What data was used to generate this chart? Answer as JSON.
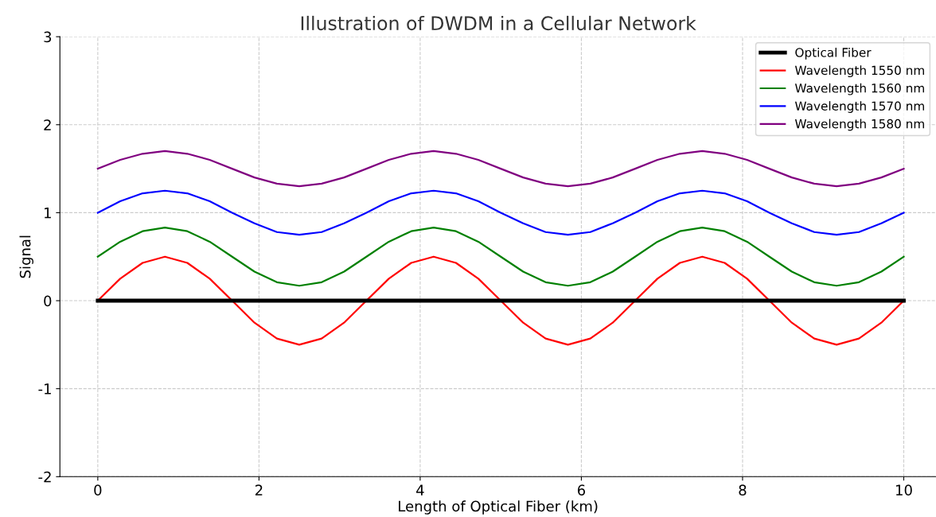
{
  "chart_data": {
    "type": "line",
    "title": "Illustration of DWDM in a Cellular Network",
    "xlabel": "Length of Optical Fiber (km)",
    "ylabel": "Signal",
    "x": [
      0,
      0.278,
      0.556,
      0.833,
      1.111,
      1.389,
      1.667,
      1.944,
      2.222,
      2.5,
      2.778,
      3.056,
      3.333,
      3.611,
      3.889,
      4.167,
      4.444,
      4.722,
      5,
      5.278,
      5.556,
      5.833,
      6.111,
      6.389,
      6.667,
      6.944,
      7.222,
      7.5,
      7.778,
      8.056,
      8.333,
      8.611,
      8.889,
      9.167,
      9.444,
      9.722,
      10
    ],
    "series": [
      {
        "name": "Optical Fiber",
        "color": "#000000",
        "x": [
          0,
          10
        ],
        "values": [
          0,
          0
        ]
      },
      {
        "name": "Wavelength 1550 nm",
        "color": "#ff0000",
        "values": [
          0,
          0.25,
          0.43,
          0.5,
          0.43,
          0.25,
          0,
          -0.25,
          -0.43,
          -0.5,
          -0.43,
          -0.25,
          0,
          0.25,
          0.43,
          0.5,
          0.43,
          0.25,
          0,
          -0.25,
          -0.43,
          -0.5,
          -0.43,
          -0.25,
          0,
          0.25,
          0.43,
          0.5,
          0.43,
          0.25,
          0,
          -0.25,
          -0.43,
          -0.5,
          -0.43,
          -0.25,
          0
        ]
      },
      {
        "name": "Wavelength 1560 nm",
        "color": "#008000",
        "values": [
          0.5,
          0.67,
          0.79,
          0.83,
          0.79,
          0.67,
          0.5,
          0.33,
          0.21,
          0.17,
          0.21,
          0.33,
          0.5,
          0.67,
          0.79,
          0.83,
          0.79,
          0.67,
          0.5,
          0.33,
          0.21,
          0.17,
          0.21,
          0.33,
          0.5,
          0.67,
          0.79,
          0.83,
          0.79,
          0.67,
          0.5,
          0.33,
          0.21,
          0.17,
          0.21,
          0.33,
          0.5
        ]
      },
      {
        "name": "Wavelength 1570 nm",
        "color": "#0000ff",
        "values": [
          1,
          1.13,
          1.22,
          1.25,
          1.22,
          1.13,
          1,
          0.88,
          0.78,
          0.75,
          0.78,
          0.88,
          1,
          1.13,
          1.22,
          1.25,
          1.22,
          1.13,
          1,
          0.88,
          0.78,
          0.75,
          0.78,
          0.88,
          1,
          1.13,
          1.22,
          1.25,
          1.22,
          1.13,
          1,
          0.88,
          0.78,
          0.75,
          0.78,
          0.88,
          1
        ]
      },
      {
        "name": "Wavelength 1580 nm",
        "color": "#800080",
        "values": [
          1.5,
          1.6,
          1.67,
          1.7,
          1.67,
          1.6,
          1.5,
          1.4,
          1.33,
          1.3,
          1.33,
          1.4,
          1.5,
          1.6,
          1.67,
          1.7,
          1.67,
          1.6,
          1.5,
          1.4,
          1.33,
          1.3,
          1.33,
          1.4,
          1.5,
          1.6,
          1.67,
          1.7,
          1.67,
          1.6,
          1.5,
          1.4,
          1.33,
          1.3,
          1.33,
          1.4,
          1.5
        ]
      }
    ],
    "xlim": [
      -0.47,
      10.4
    ],
    "xticks": [
      0,
      2,
      4,
      6,
      8,
      10
    ],
    "ylim": [
      -2,
      3
    ],
    "yticks": [
      -2,
      -1,
      0,
      1,
      2,
      3
    ],
    "grid": true,
    "legend": "top right",
    "line_style": "solid",
    "marker": "none"
  }
}
